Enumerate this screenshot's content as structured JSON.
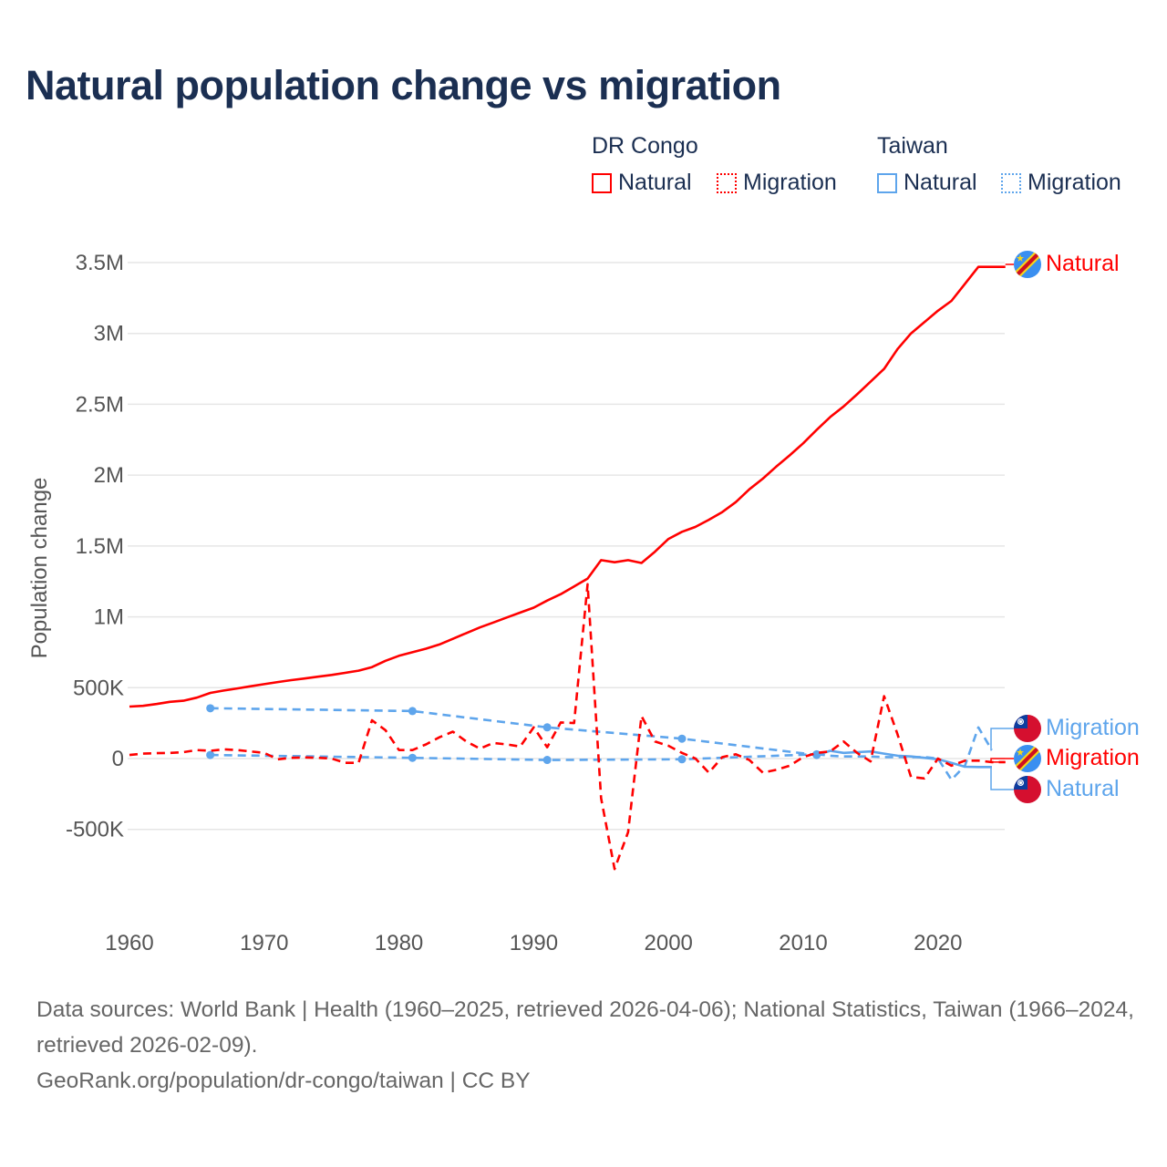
{
  "title": "Natural population change vs migration",
  "legend": {
    "groups": [
      {
        "country": "DR Congo",
        "items": [
          "Natural",
          "Migration"
        ],
        "color": "#ff0000"
      },
      {
        "country": "Taiwan",
        "items": [
          "Natural",
          "Migration"
        ],
        "color": "#5ea5ec"
      }
    ]
  },
  "end_labels": [
    {
      "text": "Natural",
      "country": "DR Congo",
      "flag": "dr-congo-flag-icon",
      "color": "#ff0000"
    },
    {
      "text": "Migration",
      "country": "Taiwan",
      "flag": "taiwan-flag-icon",
      "color": "#5ea5ec"
    },
    {
      "text": "Migration",
      "country": "DR Congo",
      "flag": "dr-congo-flag-icon",
      "color": "#ff0000"
    },
    {
      "text": "Natural",
      "country": "Taiwan",
      "flag": "taiwan-flag-icon",
      "color": "#5ea5ec"
    }
  ],
  "footer": {
    "sources": "Data sources: World Bank | Health (1960–2025, retrieved 2026-04-06); National Statistics, Taiwan (1966–2024, retrieved 2026-02-09).",
    "credit": "GeoRank.org/population/dr-congo/taiwan | CC BY"
  },
  "chart_data": {
    "type": "line",
    "title": "Natural population change vs migration",
    "xlabel": "",
    "ylabel": "Population change",
    "xlim": [
      1960,
      2025
    ],
    "ylim": [
      -1000000,
      3500000
    ],
    "x_ticks": [
      1960,
      1970,
      1980,
      1990,
      2000,
      2010,
      2020
    ],
    "y_ticks": [
      {
        "v": -500000,
        "label": "-500K"
      },
      {
        "v": 0,
        "label": "0"
      },
      {
        "v": 500000,
        "label": "500K"
      },
      {
        "v": 1000000,
        "label": "1M"
      },
      {
        "v": 1500000,
        "label": "1.5M"
      },
      {
        "v": 2000000,
        "label": "2M"
      },
      {
        "v": 2500000,
        "label": "2.5M"
      },
      {
        "v": 3000000,
        "label": "3M"
      },
      {
        "v": 3500000,
        "label": "3.5M"
      }
    ],
    "grid": true,
    "legend_position": "top-right",
    "series": [
      {
        "name": "DR Congo Natural",
        "color": "#ff0000",
        "style": "solid",
        "start_year": 1960,
        "unit": "thousands",
        "values": [
          367,
          372,
          385,
          400,
          408,
          430,
          463,
          480,
          495,
          510,
          525,
          540,
          553,
          565,
          578,
          590,
          605,
          620,
          645,
          690,
          725,
          750,
          775,
          805,
          845,
          885,
          925,
          960,
          995,
          1030,
          1065,
          1115,
          1160,
          1215,
          1270,
          1400,
          1385,
          1400,
          1380,
          1460,
          1550,
          1600,
          1635,
          1685,
          1740,
          1810,
          1900,
          1975,
          2060,
          2140,
          2225,
          2320,
          2410,
          2485,
          2570,
          2660,
          2750,
          2890,
          3000,
          3080,
          3160,
          3230,
          3350,
          3470,
          3470,
          3470
        ]
      },
      {
        "name": "DR Congo Migration",
        "color": "#ff0000",
        "style": "dashed",
        "start_year": 1960,
        "unit": "thousands",
        "values": [
          25,
          35,
          38,
          40,
          45,
          60,
          55,
          65,
          60,
          50,
          40,
          -5,
          5,
          8,
          5,
          0,
          -30,
          -30,
          270,
          200,
          60,
          60,
          100,
          150,
          190,
          120,
          70,
          110,
          100,
          85,
          220,
          80,
          255,
          250,
          1230,
          -280,
          -780,
          -520,
          300,
          120,
          90,
          40,
          0,
          -100,
          10,
          30,
          -10,
          -100,
          -80,
          -50,
          10,
          40,
          50,
          120,
          40,
          -20,
          440,
          170,
          -130,
          -140,
          0,
          -50,
          -15,
          -15,
          -25,
          -25
        ]
      },
      {
        "name": "Taiwan Natural",
        "color": "#5ea5ec",
        "style": "solid",
        "unit": "thousands",
        "sparse_years": [
          1966,
          1981,
          1991,
          2001,
          2011
        ],
        "points": [
          [
            1966,
            355
          ],
          [
            1981,
            335
          ],
          [
            1991,
            220
          ],
          [
            2001,
            140
          ],
          [
            2011,
            25
          ],
          [
            2012,
            55
          ],
          [
            2013,
            40
          ],
          [
            2014,
            45
          ],
          [
            2015,
            50
          ],
          [
            2016,
            35
          ],
          [
            2017,
            20
          ],
          [
            2018,
            15
          ],
          [
            2019,
            5
          ],
          [
            2020,
            -5
          ],
          [
            2021,
            -30
          ],
          [
            2022,
            -58
          ],
          [
            2023,
            -60
          ],
          [
            2024,
            -60
          ]
        ]
      },
      {
        "name": "Taiwan Migration",
        "color": "#5ea5ec",
        "style": "dashed",
        "unit": "thousands",
        "sparse_years": [
          1966,
          1981,
          1991,
          2001,
          2011
        ],
        "points": [
          [
            1966,
            25
          ],
          [
            1981,
            5
          ],
          [
            1991,
            -10
          ],
          [
            2001,
            -5
          ],
          [
            2011,
            30
          ],
          [
            2012,
            20
          ],
          [
            2013,
            15
          ],
          [
            2014,
            15
          ],
          [
            2015,
            15
          ],
          [
            2016,
            10
          ],
          [
            2017,
            10
          ],
          [
            2018,
            10
          ],
          [
            2019,
            10
          ],
          [
            2020,
            0
          ],
          [
            2021,
            -150
          ],
          [
            2022,
            -50
          ],
          [
            2023,
            220
          ],
          [
            2024,
            60
          ]
        ]
      }
    ]
  }
}
